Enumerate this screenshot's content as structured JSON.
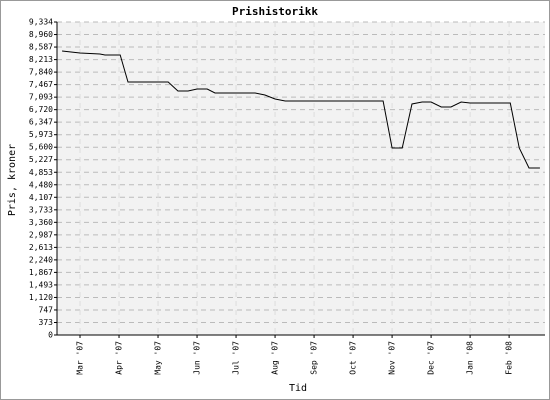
{
  "chart_data": {
    "type": "line",
    "title": "Prishistorikk",
    "x_label": "Tid",
    "y_label": "Pris, kroner",
    "x": [
      -0.46,
      0,
      0.51,
      0.64,
      1.03,
      1.23,
      2.26,
      2.51,
      2.77,
      3.0,
      3.26,
      3.46,
      4.49,
      4.74,
      5.0,
      5.26,
      7.77,
      8.0,
      8.26,
      8.51,
      8.77,
      9.0,
      9.26,
      9.51,
      9.77,
      10.0,
      11.03,
      11.26,
      11.51,
      11.79
    ],
    "series": [
      {
        "color": "#000000",
        "values": [
          8469,
          8410,
          8380,
          8350,
          8350,
          7545,
          7545,
          7277,
          7277,
          7336,
          7336,
          7217,
          7217,
          7157,
          7038,
          6978,
          6978,
          5577,
          5577,
          6889,
          6948,
          6948,
          6799,
          6799,
          6948,
          6918,
          6918,
          5577,
          4980,
          4980
        ]
      }
    ],
    "xlim": [
      -0.59,
      11.92
    ],
    "xticks": [
      {
        "value": 0,
        "label": "Mar '07"
      },
      {
        "value": 1,
        "label": "Apr '07"
      },
      {
        "value": 2,
        "label": "May '07"
      },
      {
        "value": 3,
        "label": "Jun '07"
      },
      {
        "value": 4,
        "label": "Jul '07"
      },
      {
        "value": 5,
        "label": "Aug '07"
      },
      {
        "value": 6,
        "label": "Sep '07"
      },
      {
        "value": 7,
        "label": "Oct '07"
      },
      {
        "value": 8,
        "label": "Nov '07"
      },
      {
        "value": 9,
        "label": "Dec '07"
      },
      {
        "value": 10,
        "label": "Jan '08"
      },
      {
        "value": 11,
        "label": "Feb '08"
      }
    ],
    "ylim": [
      0,
      9334
    ],
    "yticks": [
      0,
      373,
      747,
      {
        "value": 1120,
        "label": "1,120"
      },
      {
        "value": 1493,
        "label": "1,493"
      },
      {
        "value": 1867,
        "label": "1,867"
      },
      {
        "value": 2240,
        "label": "2,240"
      },
      {
        "value": 2613,
        "label": "2,613"
      },
      {
        "value": 2987,
        "label": "2,987"
      },
      {
        "value": 3360,
        "label": "3,360"
      },
      {
        "value": 3733,
        "label": "3,733"
      },
      {
        "value": 4107,
        "label": "4,107"
      },
      {
        "value": 4480,
        "label": "4,480"
      },
      {
        "value": 4853,
        "label": "4,853"
      },
      {
        "value": 5227,
        "label": "5,227"
      },
      {
        "value": 5600,
        "label": "5,600"
      },
      {
        "value": 5973,
        "label": "5,973"
      },
      {
        "value": 6347,
        "label": "6,347"
      },
      {
        "value": 6720,
        "label": "6,720"
      },
      {
        "value": 7093,
        "label": "7,093"
      },
      {
        "value": 7467,
        "label": "7,467"
      },
      {
        "value": 7840,
        "label": "7,840"
      },
      {
        "value": 8213,
        "label": "8,213"
      },
      {
        "value": 8587,
        "label": "8,587"
      },
      {
        "value": 8960,
        "label": "8,960"
      },
      {
        "value": 9334,
        "label": "9,334"
      }
    ],
    "grid": true
  }
}
